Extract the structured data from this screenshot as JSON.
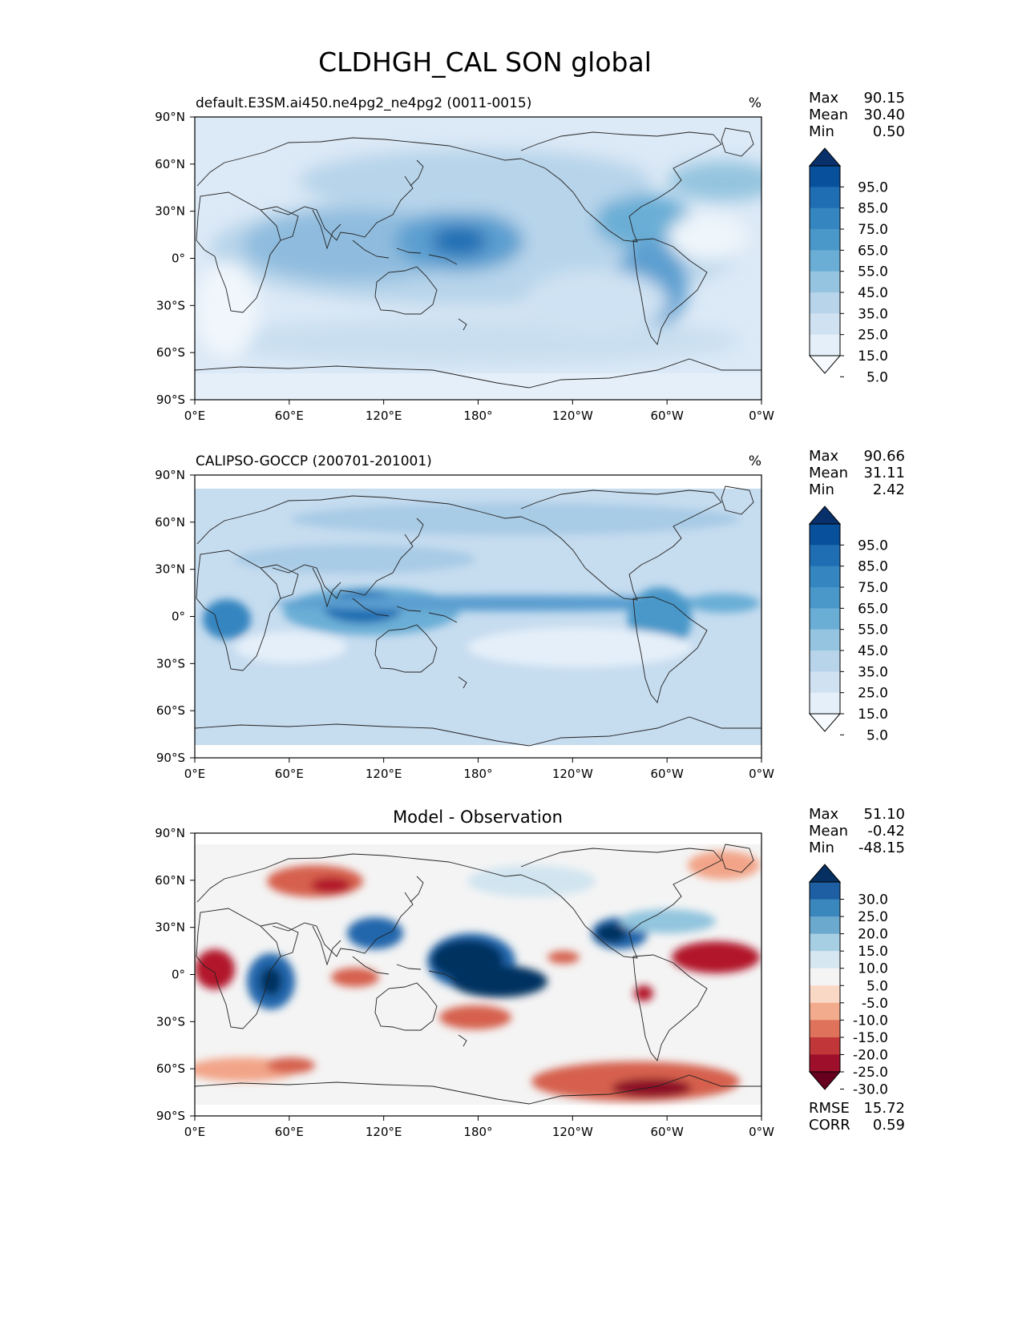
{
  "chart_data": {
    "type": "heatmap",
    "title": "CLDHGH_CAL SON global",
    "x_ticks": [
      "0°E",
      "60°E",
      "120°E",
      "180°",
      "120°W",
      "60°W",
      "0°W"
    ],
    "y_ticks": [
      "90°N",
      "60°N",
      "30°N",
      "0°",
      "30°S",
      "60°S",
      "90°S"
    ],
    "panels": [
      {
        "id": "model",
        "subtitle": "default.E3SM.ai450.ne4pg2_ne4pg2 (0011-0015)",
        "units": "%",
        "stats": [
          {
            "label": "Max",
            "value": "90.15"
          },
          {
            "label": "Mean",
            "value": "30.40"
          },
          {
            "label": "Min",
            "value": "0.50"
          }
        ],
        "colorbar_labels": [
          "95.0",
          "85.0",
          "75.0",
          "65.0",
          "55.0",
          "45.0",
          "35.0",
          "25.0",
          "15.0",
          "5.0"
        ],
        "colorbar_colors": [
          "#08306b",
          "#08509b",
          "#1f6db2",
          "#3585c0",
          "#4a98c9",
          "#6aaed6",
          "#94c4df",
          "#b7d4ea",
          "#d0e1f2",
          "#e4eff9",
          "#f7fbff"
        ]
      },
      {
        "id": "obs",
        "subtitle": "CALIPSO-GOCCP (200701-201001)",
        "units": "%",
        "stats": [
          {
            "label": "Max",
            "value": "90.66"
          },
          {
            "label": "Mean",
            "value": "31.11"
          },
          {
            "label": "Min",
            "value": "2.42"
          }
        ],
        "colorbar_labels": [
          "95.0",
          "85.0",
          "75.0",
          "65.0",
          "55.0",
          "45.0",
          "35.0",
          "25.0",
          "15.0",
          "5.0"
        ],
        "colorbar_colors": [
          "#08306b",
          "#08509b",
          "#1f6db2",
          "#3585c0",
          "#4a98c9",
          "#6aaed6",
          "#94c4df",
          "#b7d4ea",
          "#d0e1f2",
          "#e4eff9",
          "#f7fbff"
        ]
      },
      {
        "id": "diff",
        "title": "Model - Observation",
        "stats": [
          {
            "label": "Max",
            "value": "51.10"
          },
          {
            "label": "Mean",
            "value": "-0.42"
          },
          {
            "label": "Min",
            "value": "-48.15"
          }
        ],
        "colorbar_labels": [
          "30.0",
          "25.0",
          "20.0",
          "15.0",
          "10.0",
          "5.0",
          "-5.0",
          "-10.0",
          "-15.0",
          "-20.0",
          "-25.0",
          "-30.0"
        ],
        "colorbar_colors": [
          "#053061",
          "#1d5fa2",
          "#3a87bd",
          "#6ca9cf",
          "#a7cfe4",
          "#d6e7f1",
          "#f4f4f4",
          "#fad8c6",
          "#f2ab8c",
          "#de725b",
          "#c13639",
          "#9d0f2a",
          "#67001f"
        ],
        "metrics": [
          {
            "label": "RMSE",
            "value": "15.72"
          },
          {
            "label": "CORR",
            "value": "0.59"
          }
        ]
      }
    ]
  }
}
